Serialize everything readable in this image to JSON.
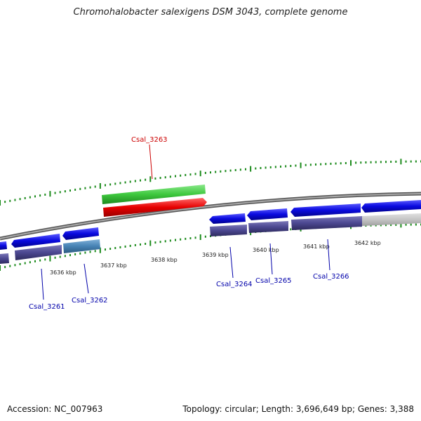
{
  "title": "Chromohalobacter salexigens DSM 3043, complete genome",
  "footer": {
    "accession": "Accession: NC_007963",
    "summary": "Topology: circular; Length: 3,696,649 bp; Genes: 3,388"
  },
  "colors": {
    "backbone": "#7a7a7a",
    "forward_cds": "#0a0adf",
    "reverse_cds": "#4b4790",
    "highlight_fwd": "#3ec83e",
    "highlight_rev": "#e60000",
    "highlight_label": "#cc0000",
    "gene_label": "#0000aa",
    "tick": "#1a8a1a"
  },
  "scale": {
    "unit": "kbp",
    "ticks": [
      {
        "kbp": 3636,
        "label": "3636 kbp"
      },
      {
        "kbp": 3637,
        "label": "3637 kbp"
      },
      {
        "kbp": 3638,
        "label": "3638 kbp"
      },
      {
        "kbp": 3639,
        "label": "3639 kbp"
      },
      {
        "kbp": 3640,
        "label": "3640 kbp"
      },
      {
        "kbp": 3641,
        "label": "3641 kbp"
      },
      {
        "kbp": 3642,
        "label": "3642 kbp"
      }
    ]
  },
  "genes": [
    {
      "id": "Csal_3261",
      "label": "Csal_3261",
      "color": "blue"
    },
    {
      "id": "Csal_3262",
      "label": "Csal_3262",
      "color": "blue"
    },
    {
      "id": "Csal_3263",
      "label": "Csal_3263",
      "color": "red"
    },
    {
      "id": "Csal_3264",
      "label": "Csal_3264",
      "color": "blue"
    },
    {
      "id": "Csal_3265",
      "label": "Csal_3265",
      "color": "blue"
    },
    {
      "id": "Csal_3266",
      "label": "Csal_3266",
      "color": "blue"
    }
  ]
}
